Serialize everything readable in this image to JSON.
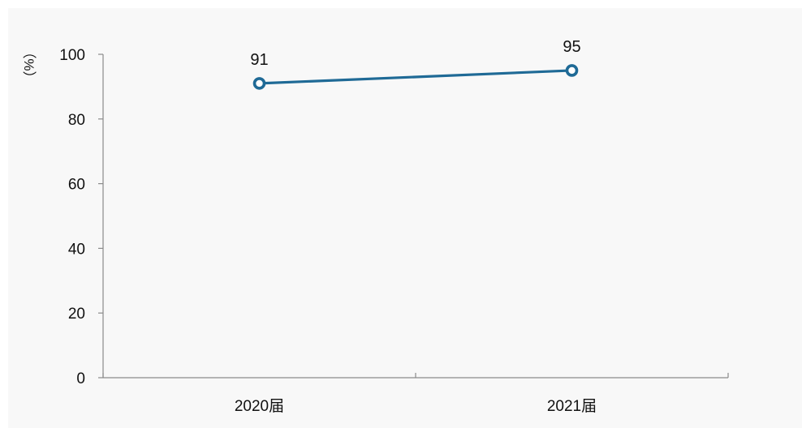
{
  "chart_data": {
    "type": "line",
    "categories": [
      "2020届",
      "2021届"
    ],
    "series": [
      {
        "values": [
          91,
          95
        ],
        "color": "#1f6a96"
      }
    ],
    "data_labels": [
      "91",
      "95"
    ],
    "ylabel": "（%）",
    "ylim": [
      0,
      100
    ],
    "yticks": [
      0,
      20,
      40,
      60,
      80,
      100
    ],
    "grid": false,
    "legend": "none"
  }
}
